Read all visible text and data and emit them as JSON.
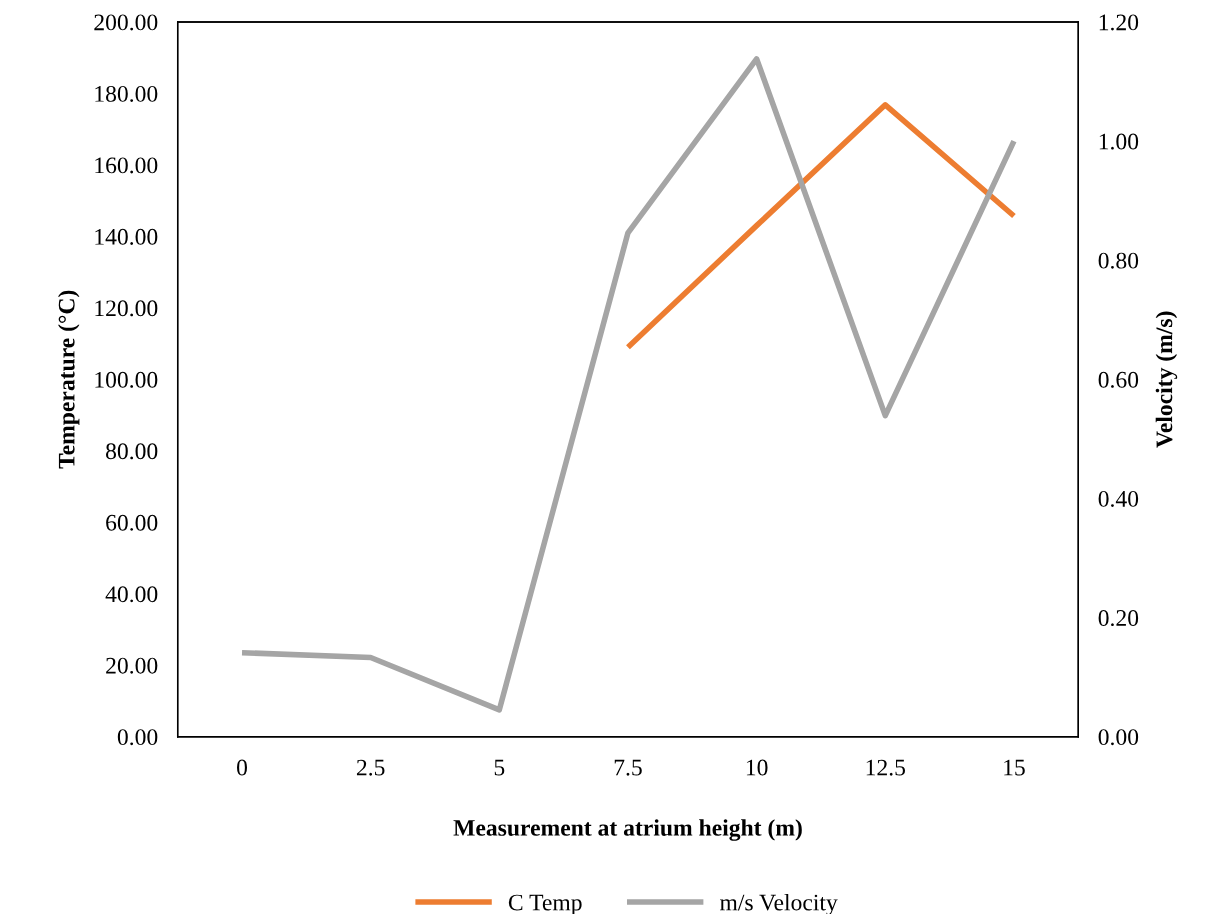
{
  "chart_data": {
    "type": "line",
    "xlabel": "Measurement at atrium height (m)",
    "ylabel": "Temperature (°C)",
    "y2label": "Velocity (m/s)",
    "categories": [
      "0",
      "2.5",
      "5",
      "7.5",
      "10",
      "12.5",
      "15"
    ],
    "series": [
      {
        "name": "C Temp",
        "color": "#ed7d31",
        "values": [
          null,
          null,
          null,
          109,
          143,
          176.8,
          145.7
        ]
      },
      {
        "name": "m/s Velocity",
        "color": "#a5a5a5",
        "axis": "y2",
        "values": [
          0.141,
          0.133,
          0.045,
          0.846,
          1.138,
          0.539,
          1.0
        ]
      }
    ],
    "ylim": [
      0,
      200
    ],
    "yticks": [
      {
        "value": 0,
        "label": "0.00"
      },
      {
        "value": 20,
        "label": "20.00"
      },
      {
        "value": 40,
        "label": "40.00"
      },
      {
        "value": 60,
        "label": "60.00"
      },
      {
        "value": 80,
        "label": "80.00"
      },
      {
        "value": 100,
        "label": "100.00"
      },
      {
        "value": 120,
        "label": "120.00"
      },
      {
        "value": 140,
        "label": "140.00"
      },
      {
        "value": 160,
        "label": "160.00"
      },
      {
        "value": 180,
        "label": "180.00"
      },
      {
        "value": 200,
        "label": "200.00"
      }
    ],
    "y2lim": [
      0,
      1.2
    ],
    "y2ticks": [
      {
        "value": 0,
        "label": "0.00"
      },
      {
        "value": 0.2,
        "label": "0.20"
      },
      {
        "value": 0.4,
        "label": "0.40"
      },
      {
        "value": 0.6,
        "label": "0.60"
      },
      {
        "value": 0.8,
        "label": "0.80"
      },
      {
        "value": 1.0,
        "label": "1.00"
      },
      {
        "value": 1.2,
        "label": "1.20"
      }
    ],
    "legend": "bottom",
    "grid": false,
    "marker": "none",
    "line_style": "solid"
  }
}
